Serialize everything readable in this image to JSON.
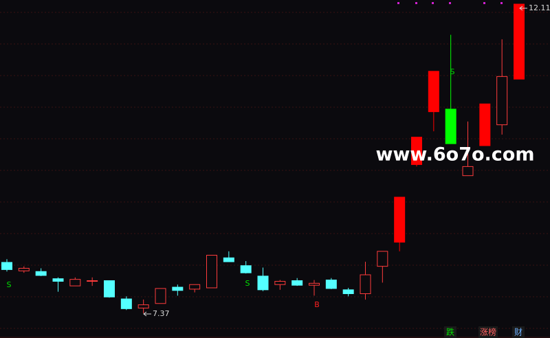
{
  "chart_data": {
    "type": "candlestick",
    "open": [
      8.15,
      8.02,
      8.01,
      7.9,
      7.79,
      7.86,
      7.87,
      7.59,
      7.45,
      7.52,
      7.77,
      7.74,
      7.76,
      8.22,
      8.1,
      7.94,
      7.81,
      7.87,
      7.8,
      7.88,
      7.73,
      7.67,
      8.09,
      8.46,
      9.65,
      10.46,
      10.5,
      9.48,
      9.94,
      10.26,
      10.96
    ],
    "high": [
      8.2,
      8.09,
      8.06,
      7.92,
      7.92,
      7.92,
      7.87,
      7.63,
      7.58,
      7.75,
      7.81,
      7.81,
      8.26,
      8.32,
      8.17,
      8.07,
      7.88,
      7.91,
      7.88,
      7.91,
      7.76,
      8.16,
      8.32,
      9.15,
      10.07,
      11.08,
      11.64,
      10.31,
      10.58,
      11.57,
      12.11
    ],
    "low": [
      8.01,
      7.99,
      7.94,
      7.7,
      7.79,
      7.79,
      7.61,
      7.42,
      7.37,
      7.52,
      7.64,
      7.69,
      7.76,
      8.16,
      7.98,
      7.71,
      7.73,
      7.79,
      7.64,
      7.74,
      7.63,
      7.58,
      7.84,
      8.32,
      9.62,
      10.16,
      9.97,
      9.48,
      9.94,
      10.11,
      10.96
    ],
    "close": [
      8.04,
      8.06,
      7.95,
      7.86,
      7.89,
      7.87,
      7.62,
      7.44,
      7.5,
      7.75,
      7.72,
      7.81,
      8.26,
      8.16,
      7.99,
      7.73,
      7.86,
      7.8,
      7.83,
      7.75,
      7.67,
      7.96,
      8.32,
      9.15,
      10.07,
      11.08,
      9.97,
      9.62,
      10.58,
      11.0,
      12.11
    ],
    "candle_colors": [
      "#54ffff",
      "#ff3c3c",
      "#54ffff",
      "#54ffff",
      "#ff3c3c",
      "#ff3c3c",
      "#54ffff",
      "#54ffff",
      "#ff3c3c",
      "#ff3c3c",
      "#54ffff",
      "#ff3c3c",
      "#ff3c3c",
      "#54ffff",
      "#54ffff",
      "#54ffff",
      "#ff3c3c",
      "#54ffff",
      "#ff3c3c",
      "#54ffff",
      "#54ffff",
      "#ff3c3c",
      "#ff3c3c",
      "#ff0000",
      "#ff0000",
      "#ff0000",
      "#00ff00",
      "#ff3c3c",
      "#ff0000",
      "#ff3c3c",
      "#ff0000"
    ],
    "hollow": [
      false,
      true,
      false,
      false,
      true,
      true,
      false,
      false,
      true,
      true,
      false,
      true,
      true,
      false,
      false,
      false,
      true,
      false,
      true,
      false,
      false,
      true,
      true,
      false,
      false,
      false,
      false,
      true,
      false,
      true,
      false
    ],
    "annotations": [
      {
        "text": "S",
        "color": "#00e000"
      },
      {
        "text": "S",
        "color": "#00e000"
      },
      {
        "text": "B",
        "color": "#ff2020"
      },
      {
        "text": "S",
        "color": "#00e000"
      },
      {
        "text": "7.37",
        "color": "#d8d8d8"
      },
      {
        "text": "12.11",
        "color": "#d8d8d8"
      }
    ]
  },
  "watermark": "www.6o7o.com",
  "tabs": [
    "跌",
    "涨榜",
    "财"
  ]
}
